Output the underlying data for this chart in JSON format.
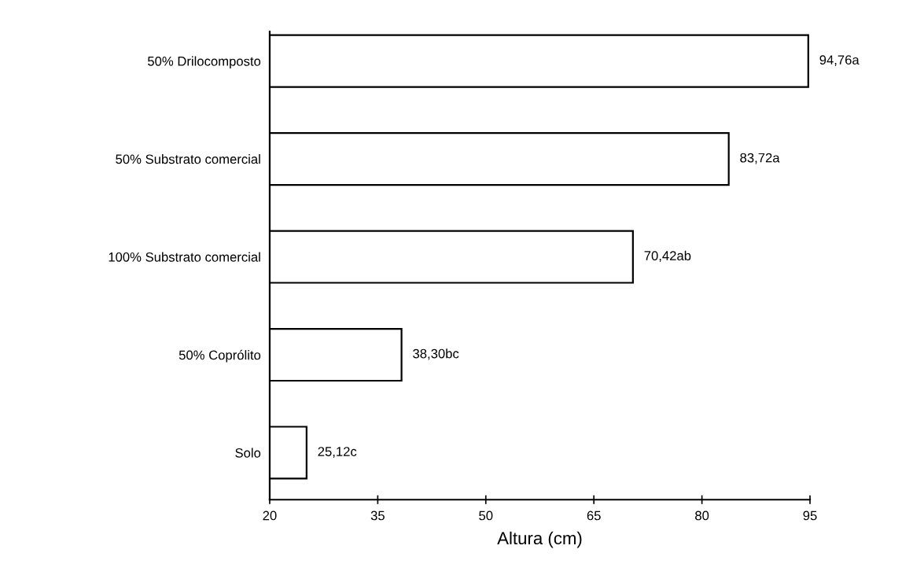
{
  "chart_data": {
    "type": "bar",
    "orientation": "horizontal",
    "xlabel": "Altura (cm)",
    "categories": [
      "50% Drilocomposto",
      "50% Substrato comercial",
      "100% Substrato comercial",
      "50% Coprólito",
      "Solo"
    ],
    "values": [
      94.76,
      83.72,
      70.42,
      38.3,
      25.12
    ],
    "value_labels": [
      "94,76a",
      "83,72a",
      "70,42ab",
      "38,30bc",
      "25,12c"
    ],
    "color": "#ffffff",
    "xlim": [
      20,
      95
    ],
    "xticks": [
      20,
      35,
      50,
      65,
      80,
      95
    ],
    "grid": false,
    "legend": false
  }
}
